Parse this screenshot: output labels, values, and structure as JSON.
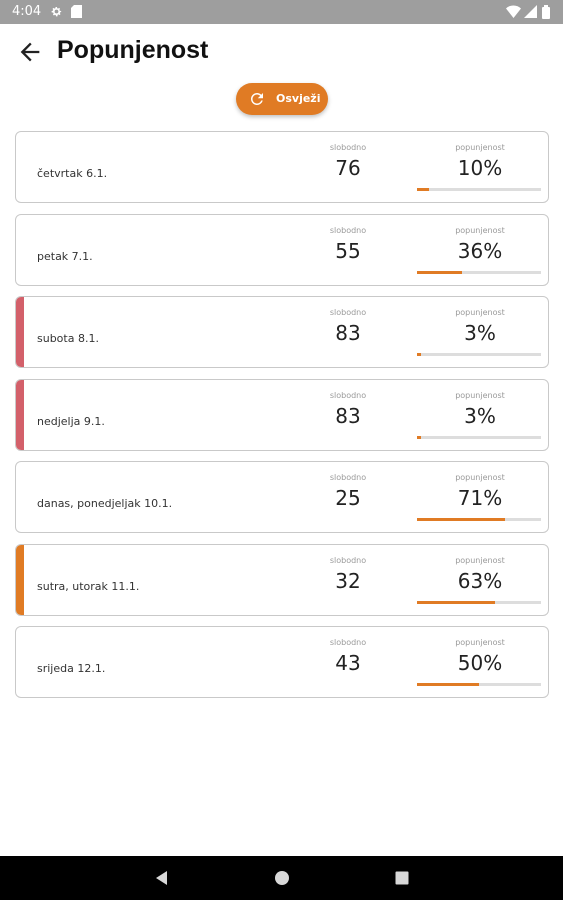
{
  "status_bar": {
    "time": "4:04",
    "icons": [
      "gear-icon",
      "sim-card-icon",
      "wifi-icon",
      "cellular-signal-icon",
      "battery-icon"
    ]
  },
  "header": {
    "title": "Popunjenost",
    "back_icon": "arrow-left-icon"
  },
  "refresh_button": {
    "label": "Osvježi",
    "icon": "refresh-icon",
    "color": "#e07b24"
  },
  "labels": {
    "free": "slobodno",
    "occupancy": "popunjenost"
  },
  "colors": {
    "accent_orange": "#e07b24",
    "accent_red": "#d3606a"
  },
  "days": [
    {
      "label": "četvrtak 6.1.",
      "free": "76",
      "occupancy": "10%",
      "fill": 0.1,
      "accent": "none"
    },
    {
      "label": "petak 7.1.",
      "free": "55",
      "occupancy": "36%",
      "fill": 0.36,
      "accent": "none"
    },
    {
      "label": "subota 8.1.",
      "free": "83",
      "occupancy": "3%",
      "fill": 0.03,
      "accent": "red"
    },
    {
      "label": "nedjelja 9.1.",
      "free": "83",
      "occupancy": "3%",
      "fill": 0.03,
      "accent": "red"
    },
    {
      "label": "danas, ponedjeljak 10.1.",
      "free": "25",
      "occupancy": "71%",
      "fill": 0.71,
      "accent": "none"
    },
    {
      "label": "sutra, utorak 11.1.",
      "free": "32",
      "occupancy": "63%",
      "fill": 0.63,
      "accent": "orange"
    },
    {
      "label": "srijeda 12.1.",
      "free": "43",
      "occupancy": "50%",
      "fill": 0.5,
      "accent": "none"
    }
  ],
  "nav_bar": {
    "icons": [
      "back-triangle-icon",
      "home-circle-icon",
      "recents-square-icon"
    ]
  }
}
